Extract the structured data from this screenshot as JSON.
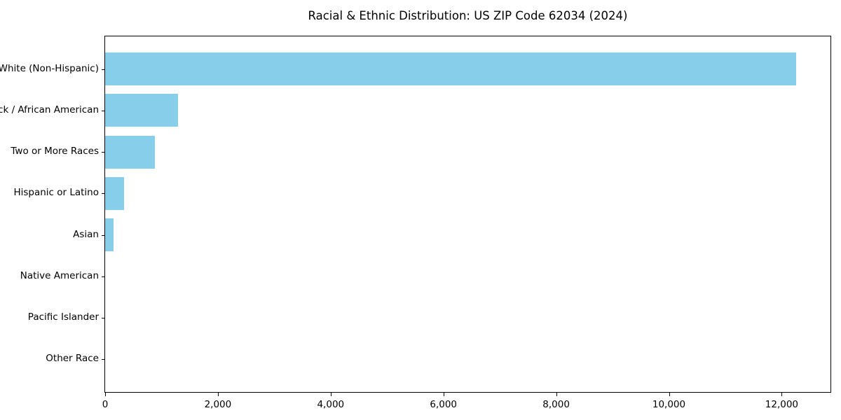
{
  "chart_data": {
    "type": "bar",
    "orientation": "horizontal",
    "title": "Racial & Ethnic Distribution: US ZIP Code 62034 (2024)",
    "categories": [
      "White (Non-Hispanic)",
      "Black / African American",
      "Two or More Races",
      "Hispanic or Latino",
      "Asian",
      "Native American",
      "Pacific Islander",
      "Other Race"
    ],
    "values": [
      12250,
      1290,
      880,
      340,
      150,
      0,
      0,
      0
    ],
    "xlabel": "",
    "ylabel": "",
    "xlim": [
      0,
      12865
    ],
    "x_ticks": [
      0,
      2000,
      4000,
      6000,
      8000,
      10000,
      12000
    ],
    "x_tick_labels": [
      "0",
      "2,000",
      "4,000",
      "6,000",
      "8,000",
      "10,000",
      "12,000"
    ],
    "bar_color": "#87CEEB",
    "text_color": "#000000",
    "spine_color": "#000000",
    "background_color": "#FFFFFF",
    "grid": false,
    "legend": "none"
  }
}
